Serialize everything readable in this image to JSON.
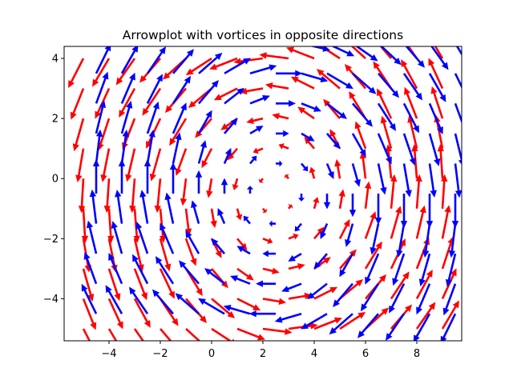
{
  "chart_data": {
    "type": "quiver",
    "title": "Arrowplot with vortices in opposite directions",
    "xlabel": "",
    "ylabel": "",
    "xlim": [
      -5.75,
      9.75
    ],
    "ylim": [
      -5.4,
      4.4
    ],
    "xticks": [
      -4,
      -2,
      0,
      2,
      4,
      6,
      8
    ],
    "xtick_labels": [
      "−4",
      "−2",
      "0",
      "2",
      "4",
      "6",
      "8"
    ],
    "yticks": [
      -4,
      -2,
      0,
      2,
      4
    ],
    "ytick_labels": [
      "−4",
      "−2",
      "0",
      "2",
      "4"
    ],
    "grid": false,
    "grid_x": [
      -5,
      -4,
      -3,
      -2,
      -1,
      0,
      1,
      2,
      3,
      4,
      5,
      6,
      7,
      8,
      9
    ],
    "grid_y": [
      -5,
      -4,
      -3,
      -2,
      -1,
      0,
      1,
      2,
      3,
      4
    ],
    "series": [
      {
        "color": "#ff0000",
        "rotation": "counterclockwise",
        "center": [
          2.5,
          -0.5
        ]
      },
      {
        "color": "#0000ff",
        "rotation": "clockwise",
        "center": [
          2.5,
          -0.5
        ],
        "offset": [
          0.5,
          0.5
        ]
      }
    ]
  }
}
